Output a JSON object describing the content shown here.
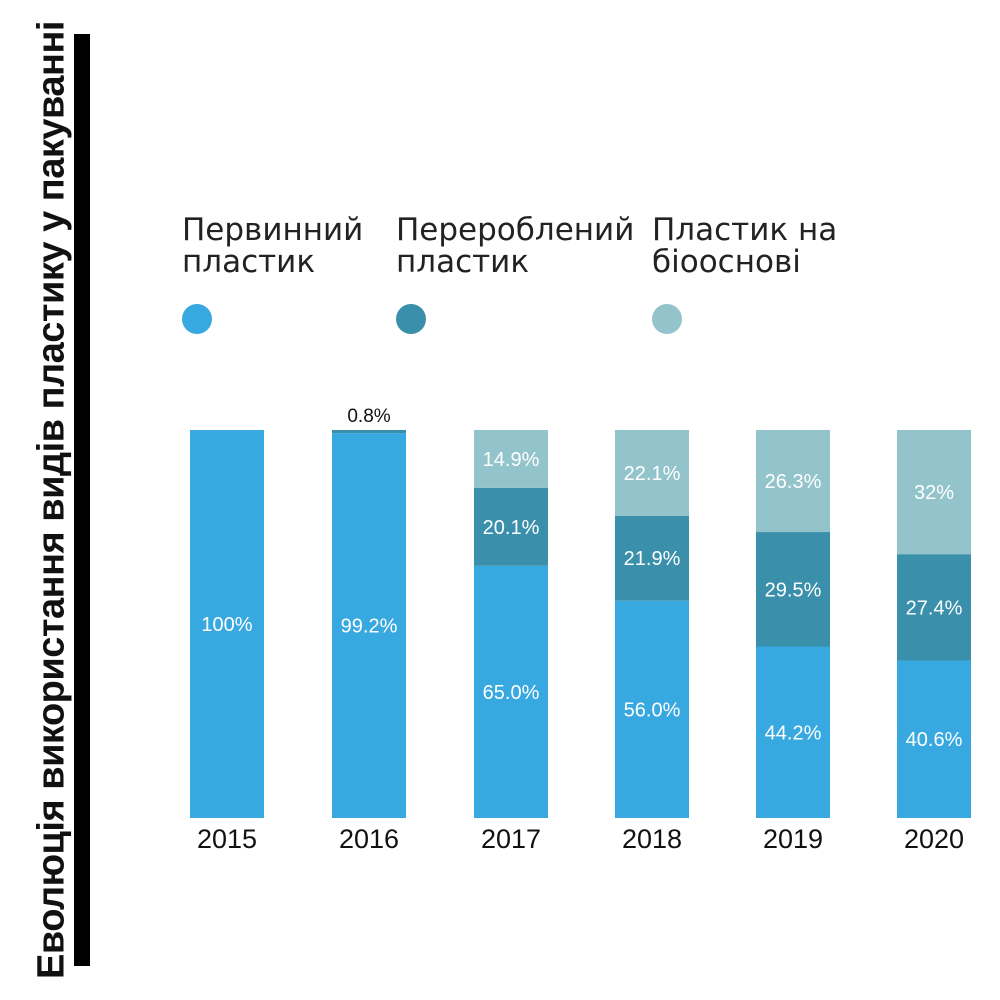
{
  "title": "Еволюція використання видів пластику у пакуванні",
  "legend": [
    {
      "label": "Первинний пластик",
      "line1": "Первинний",
      "line2": "пластик",
      "color": "#38a8e0"
    },
    {
      "label": "Перероблений пластик",
      "line1": "Перероблений",
      "line2": "пластик",
      "color": "#3a8fab"
    },
    {
      "label": "Пластик на біооснові",
      "line1": "Пластик на",
      "line2": "біооснові",
      "color": "#93c4cc"
    }
  ],
  "chart_data": {
    "type": "bar",
    "stacked": true,
    "categories": [
      "2015",
      "2016",
      "2017",
      "2018",
      "2019",
      "2020"
    ],
    "ylim": [
      0,
      100
    ],
    "series": [
      {
        "name": "Первинний пластик",
        "color": "#38a8e0",
        "values": [
          100,
          99.2,
          65.0,
          56.0,
          44.2,
          40.6
        ],
        "labels": [
          "100%",
          "99.2%",
          "65.0%",
          "56.0%",
          "44.2%",
          "40.6%"
        ]
      },
      {
        "name": "Перероблений пластик",
        "color": "#3a8fab",
        "values": [
          0,
          0.8,
          20.1,
          21.9,
          29.5,
          27.4
        ],
        "labels": [
          "",
          "0.8%",
          "20.1%",
          "21.9%",
          "29.5%",
          "27.4%"
        ]
      },
      {
        "name": "Пластик на біооснові",
        "color": "#93c4cc",
        "values": [
          0,
          0,
          14.9,
          22.1,
          26.3,
          32
        ],
        "labels": [
          "",
          "",
          "14.9%",
          "22.1%",
          "26.3%",
          "32%"
        ]
      }
    ]
  }
}
